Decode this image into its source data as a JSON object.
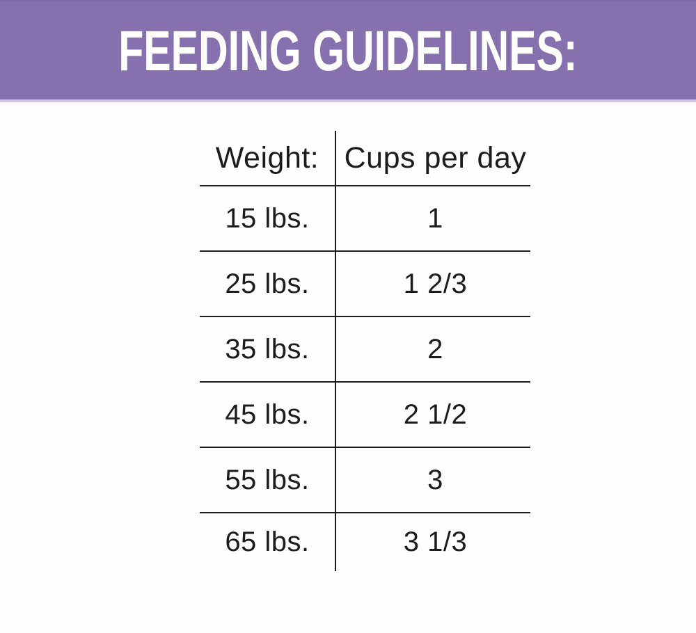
{
  "header": {
    "title": "FEEDING GUIDELINES:",
    "background_color": "#8670AE",
    "text_color": "#FFFFFF"
  },
  "table": {
    "columns": [
      "Weight:",
      "Cups per day"
    ],
    "rows": [
      {
        "weight": "15 lbs.",
        "cups": "1"
      },
      {
        "weight": "25 lbs.",
        "cups": "1 2/3"
      },
      {
        "weight": "35 lbs.",
        "cups": "2"
      },
      {
        "weight": "45 lbs.",
        "cups": "2 1/2"
      },
      {
        "weight": "55 lbs.",
        "cups": "3"
      },
      {
        "weight": "65 lbs.",
        "cups": "3 1/3"
      }
    ],
    "line_color": "#1C1C1C"
  },
  "chart_data": {
    "type": "table",
    "title": "FEEDING GUIDELINES:",
    "columns": [
      "Weight:",
      "Cups per day"
    ],
    "rows": [
      [
        "15 lbs.",
        "1"
      ],
      [
        "25 lbs.",
        "1 2/3"
      ],
      [
        "35 lbs.",
        "2"
      ],
      [
        "45 lbs.",
        "2 1/2"
      ],
      [
        "55 lbs.",
        "3"
      ],
      [
        "65 lbs.",
        "3 1/3"
      ]
    ],
    "weights_lbs": [
      15,
      25,
      35,
      45,
      55,
      65
    ],
    "cups_per_day_numeric": [
      1,
      1.667,
      2,
      2.5,
      3,
      3.333
    ]
  }
}
